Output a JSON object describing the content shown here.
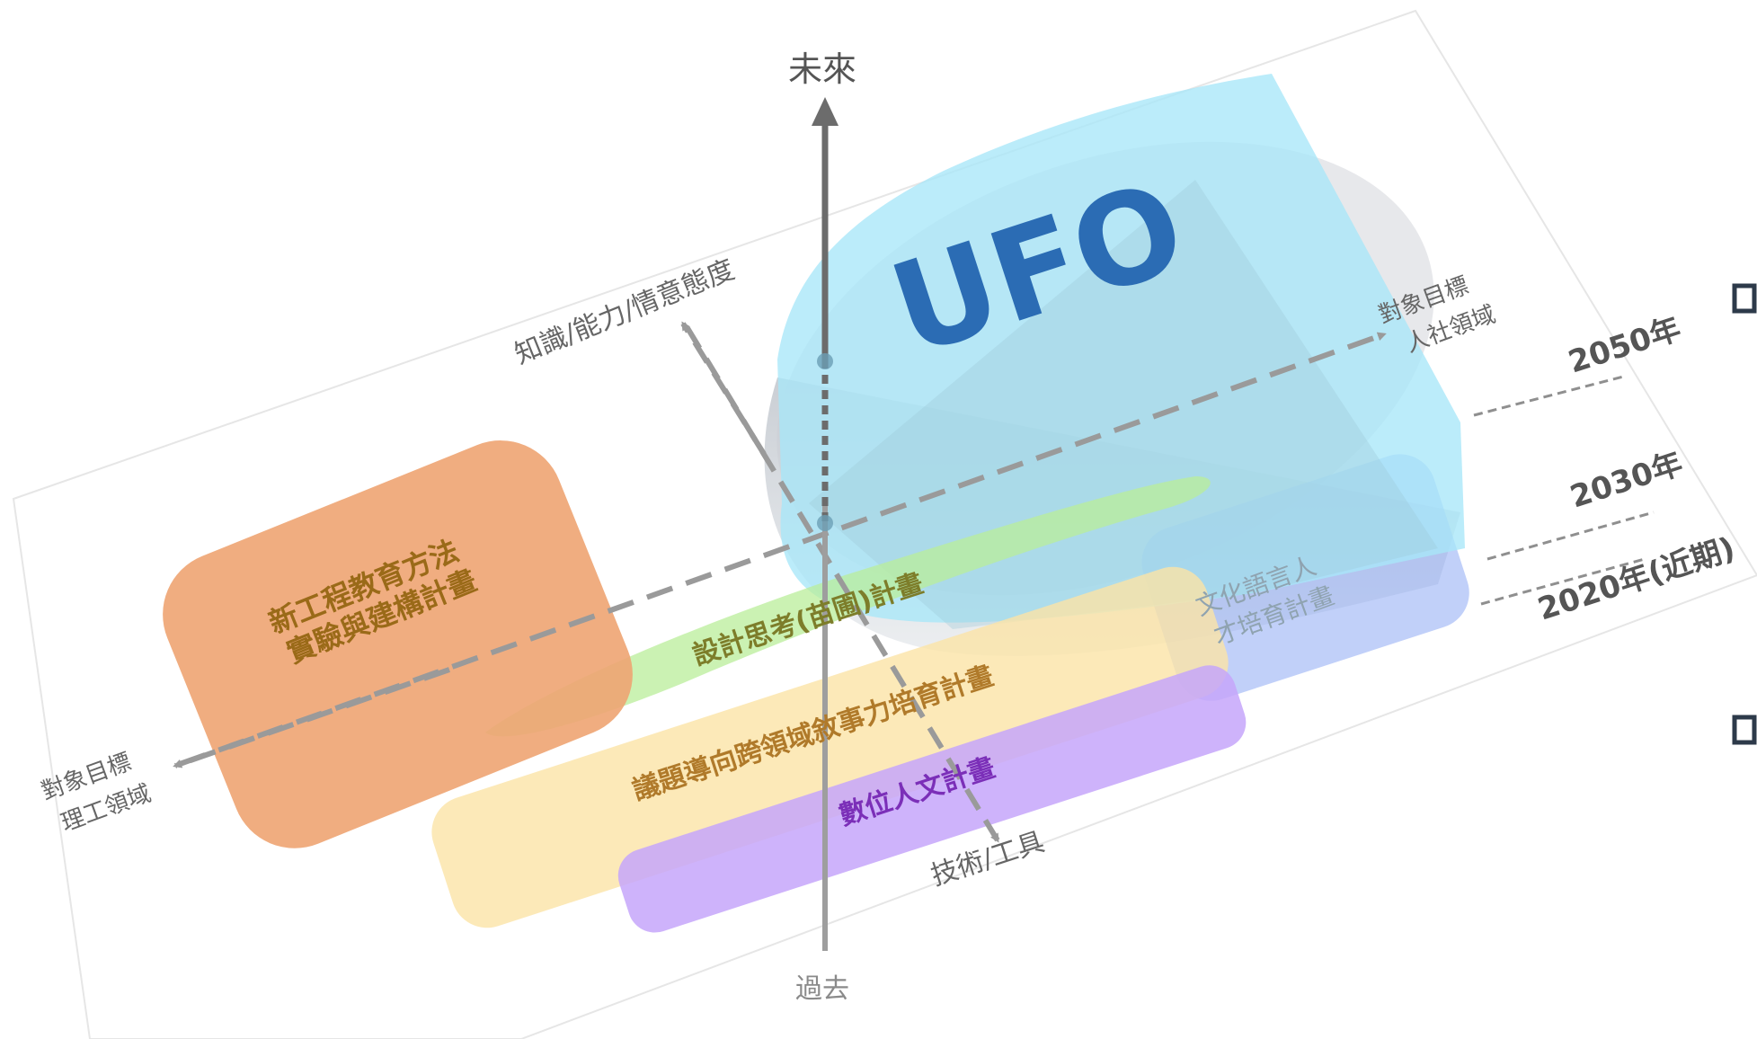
{
  "axis": {
    "future": "未來",
    "past": "過去",
    "knowledge": "知識/能力/情意態度",
    "tech": "技術/工具",
    "target_hum_1": "對象目標",
    "target_hum_2": "人社領域",
    "target_eng_1": "對象目標",
    "target_eng_2": "理工領域"
  },
  "years": {
    "y2050": "2050年",
    "y2030": "2030年",
    "y2020": "2020年(近期)"
  },
  "ufo": {
    "label": "UFO"
  },
  "plans": {
    "engineering_1": "新工程教育方法",
    "engineering_2": "實驗與建構計畫",
    "design": "設計思考(苗圃)計畫",
    "narrative": "議題導向跨領域敘事力培育計畫",
    "digital": "數位人文計畫",
    "culture_1": "文化語言人",
    "culture_2": "才培育計畫"
  },
  "colors": {
    "engineering": "#eea472",
    "design": "#b9ee9a",
    "narrative": "#fbe3a6",
    "digital": "#c6a6fa",
    "culture": "#8eaaf4",
    "ufo": "#a8e7f9",
    "ufo_text": "#2b6cb4",
    "axis": "#7a7a7a"
  }
}
